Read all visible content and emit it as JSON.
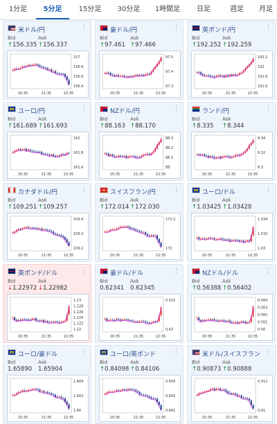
{
  "tabs": [
    {
      "label": "1分足",
      "active": false
    },
    {
      "label": "5分足",
      "active": true
    },
    {
      "label": "15分足",
      "active": false
    },
    {
      "label": "30分足",
      "active": false
    },
    {
      "label": "1時間足",
      "active": false
    },
    {
      "label": "日足",
      "active": false
    },
    {
      "label": "週足",
      "active": false
    },
    {
      "label": "月足",
      "active": false
    }
  ],
  "labels": {
    "bid": "Bid",
    "ask": "Ask"
  },
  "colors": {
    "up": "#1a8c2a",
    "down": "#c62828",
    "candle_up": "#e53935",
    "candle_down": "#1e3a8a",
    "ma": "#c026d3"
  },
  "cards": [
    {
      "pair": "米ドル/円",
      "flag": "us-flag",
      "dir": "up",
      "bid": "156.335",
      "ask": "156.337",
      "x_ticks": [
        "20:35",
        "21:35",
        "22:35"
      ],
      "y_ticks": [
        "157",
        "156.8",
        "156.6",
        "156.4"
      ],
      "ylim": [
        156.3,
        157.1
      ],
      "trend": "down-end",
      "chart_data": {
        "type": "candlestick",
        "ma": true
      }
    },
    {
      "pair": "豪ドル/円",
      "flag": "au-flag",
      "dir": "up",
      "bid": "97.461",
      "ask": "97.466",
      "x_ticks": [
        "20:35",
        "21:35",
        "22:35"
      ],
      "y_ticks": [
        "97.5",
        "97.4",
        "97.3"
      ],
      "ylim": [
        97.22,
        97.58
      ],
      "trend": "up-end",
      "chart_data": {
        "type": "candlestick",
        "ma": true
      }
    },
    {
      "pair": "英ポンド/円",
      "flag": "gb-flag",
      "dir": "up",
      "bid": "192.252",
      "ask": "192.259",
      "x_ticks": [
        "20:35",
        "21:35",
        "22:35"
      ],
      "y_ticks": [
        "192.2",
        "192",
        "191.8",
        "191.6"
      ],
      "ylim": [
        191.5,
        192.3
      ],
      "trend": "up-end",
      "chart_data": {
        "type": "candlestick",
        "ma": true
      }
    },
    {
      "pair": "ユーロ/円",
      "flag": "eu-flag",
      "dir": "up",
      "bid": "161.689",
      "ask": "161.693",
      "x_ticks": [
        "20:35",
        "21:35",
        "22:35"
      ],
      "y_ticks": [
        "162",
        "161.8",
        "161.6"
      ],
      "ylim": [
        161.5,
        162.1
      ],
      "trend": "flat-up",
      "chart_data": {
        "type": "candlestick",
        "ma": true
      }
    },
    {
      "pair": "NZドル/円",
      "flag": "nz-flag",
      "dir": "up",
      "bid": "88.163",
      "ask": "88.170",
      "x_ticks": [
        "20:35",
        "21:35",
        "22:35"
      ],
      "y_ticks": [
        "88.3",
        "88.2",
        "88.1",
        "88"
      ],
      "ylim": [
        87.95,
        88.35
      ],
      "trend": "up-end",
      "chart_data": {
        "type": "candlestick",
        "ma": true
      }
    },
    {
      "pair": "ランド/円",
      "flag": "za-flag",
      "dir": "up",
      "bid": "8.335",
      "ask": "8.344",
      "x_ticks": [
        "20:35",
        "21:35",
        "22:35"
      ],
      "y_ticks": [
        "8.34",
        "8.32",
        "8.3"
      ],
      "ylim": [
        8.29,
        8.35
      ],
      "trend": "up-end",
      "chart_data": {
        "type": "candlestick",
        "ma": true
      }
    },
    {
      "pair": "カナダドル/円",
      "flag": "ca-flag",
      "dir": "up",
      "bid": "109.251",
      "ask": "109.257",
      "x_ticks": [
        "20:35",
        "21:35",
        "22:35"
      ],
      "y_ticks": [
        "109.4",
        "109.3",
        "109.2"
      ],
      "ylim": [
        109.15,
        109.5
      ],
      "trend": "down-end",
      "chart_data": {
        "type": "candlestick",
        "ma": true
      }
    },
    {
      "pair": "スイスフラン/円",
      "flag": "ch-flag",
      "dir": "up",
      "bid": "172.014",
      "ask": "172.030",
      "x_ticks": [
        "20:35",
        "21:35",
        "22:35"
      ],
      "y_ticks": [
        "172.2",
        "172"
      ],
      "ylim": [
        171.9,
        172.3
      ],
      "trend": "down-end",
      "chart_data": {
        "type": "candlestick",
        "ma": true
      }
    },
    {
      "pair": "ユーロ/ドル",
      "flag": "eu-flag",
      "dir": "up",
      "bid": "1.03425",
      "ask": "1.03428",
      "x_ticks": [
        "20:35",
        "21:35",
        "22:35"
      ],
      "y_ticks": [
        "1.034",
        "1.032",
        "1.03"
      ],
      "ylim": [
        1.029,
        1.035
      ],
      "trend": "spike-up",
      "chart_data": {
        "type": "candlestick",
        "ma": true
      }
    },
    {
      "pair": "英ポンド/ドル",
      "flag": "gb-flag",
      "dir": "down",
      "bid": "1.22972",
      "ask": "1.22982",
      "x_ticks": [
        "20:35",
        "21:35",
        "22:35"
      ],
      "y_ticks": [
        "1.23",
        "1.228",
        "1.226",
        "1.224",
        "1.222",
        "1.22"
      ],
      "ylim": [
        1.219,
        1.231
      ],
      "trend": "spike-up",
      "chart_data": {
        "type": "candlestick",
        "ma": true
      }
    },
    {
      "pair": "豪ドル/ドル",
      "flag": "au-flag",
      "dir": "none",
      "bid": "0.62341",
      "ask": "0.62345",
      "x_ticks": [
        "20:35",
        "21:35",
        "22:35"
      ],
      "y_ticks": [
        "0.622",
        "0.62"
      ],
      "ylim": [
        0.619,
        0.624
      ],
      "trend": "spike-up",
      "chart_data": {
        "type": "candlestick",
        "ma": true
      }
    },
    {
      "pair": "NZドル/ドル",
      "flag": "nz-flag",
      "dir": "up",
      "bid": "0.56388",
      "ask": "0.56402",
      "x_ticks": [
        "20:35",
        "21:35",
        "22:35"
      ],
      "y_ticks": [
        "0.564",
        "0.563",
        "0.562",
        "0.561",
        "0.56"
      ],
      "ylim": [
        0.5595,
        0.5645
      ],
      "trend": "spike-up",
      "chart_data": {
        "type": "candlestick",
        "ma": true
      }
    },
    {
      "pair": "ユーロ/豪ドル",
      "flag": "eu-flag",
      "dir": "none",
      "bid": "1.65890",
      "ask": "1.65904",
      "x_ticks": [
        "20:35",
        "21:35",
        "22:35"
      ],
      "y_ticks": [
        "1.664",
        "1.662",
        "1.66"
      ],
      "ylim": [
        1.658,
        1.665
      ],
      "trend": "down-end",
      "chart_data": {
        "type": "candlestick",
        "ma": true
      }
    },
    {
      "pair": "ユーロ/英ポンド",
      "flag": "eu-flag",
      "dir": "up",
      "bid": "0.84098",
      "ask": "0.84106",
      "x_ticks": [
        "20:35",
        "21:35",
        "22:35"
      ],
      "y_ticks": [
        "0.843",
        "0.842",
        "0.841"
      ],
      "ylim": [
        0.8405,
        0.8436
      ],
      "trend": "down-end",
      "chart_data": {
        "type": "candlestick",
        "ma": true
      }
    },
    {
      "pair": "米ドル/スイスフラン",
      "flag": "us-flag",
      "dir": "up",
      "bid": "0.90873",
      "ask": "0.90888",
      "x_ticks": [
        "20:35",
        "21:35",
        "22:35"
      ],
      "y_ticks": [
        "0.912",
        "0.91"
      ],
      "ylim": [
        0.9085,
        0.9125
      ],
      "trend": "down-end",
      "chart_data": {
        "type": "candlestick",
        "ma": true
      }
    }
  ]
}
